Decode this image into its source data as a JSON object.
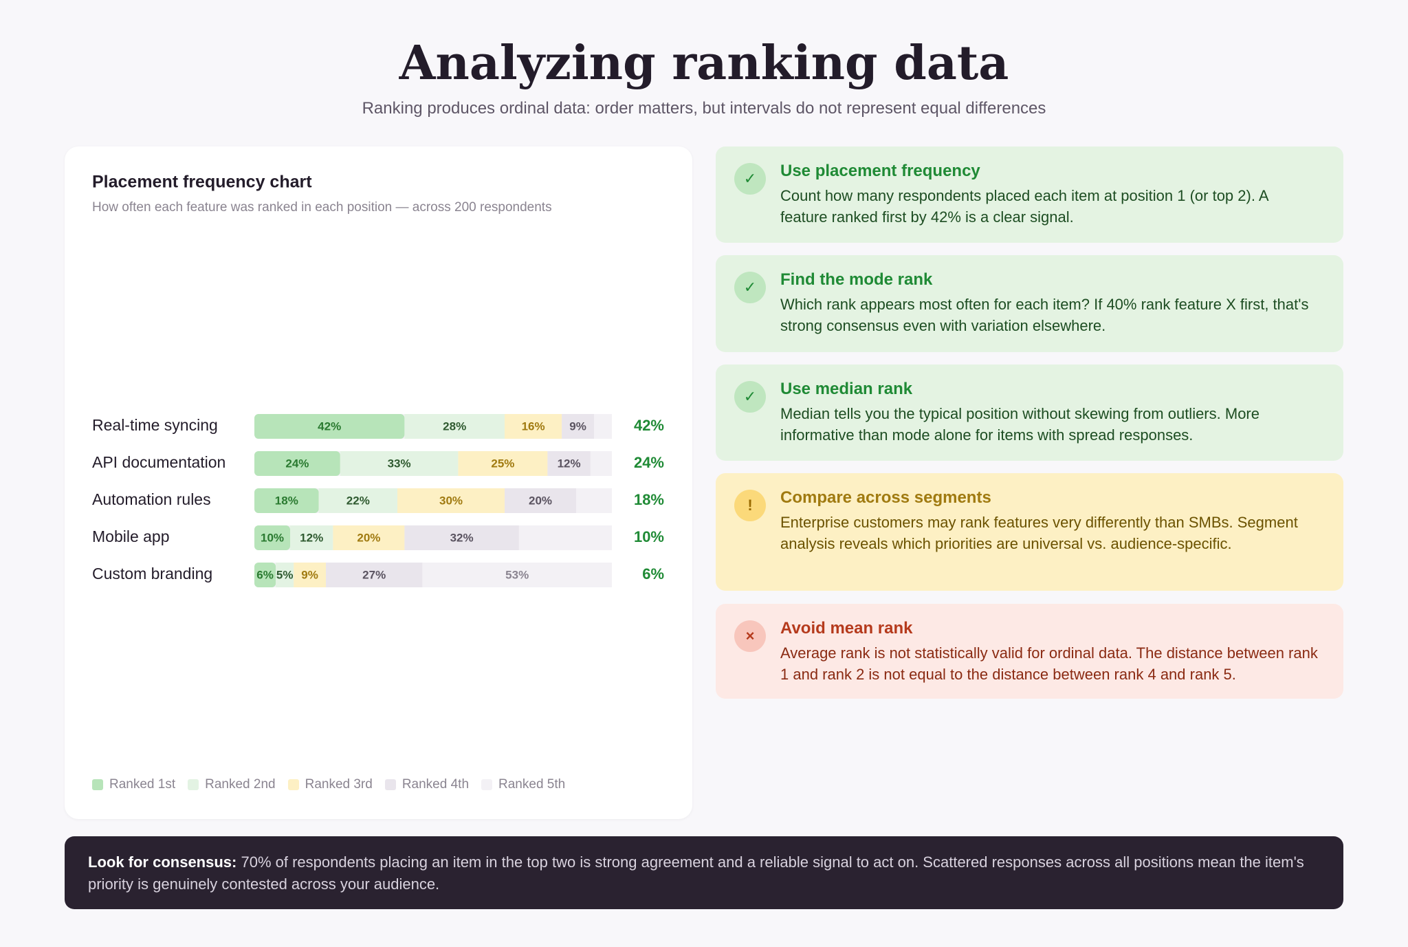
{
  "header": {
    "title": "Analyzing ranking data",
    "subtitle": "Ranking produces ordinal data: order matters, but intervals do not represent equal differences"
  },
  "chart_data": {
    "type": "bar",
    "orientation": "horizontal",
    "stacked": true,
    "title": "Placement frequency chart",
    "subtitle": "How often each feature was ranked in each position — across 200 respondents",
    "categories": [
      "Real-time syncing",
      "API documentation",
      "Automation rules",
      "Mobile app",
      "Custom branding"
    ],
    "xlim": [
      0,
      100
    ],
    "series": [
      {
        "name": "Ranked 1st",
        "color": "#b7e4b9",
        "values": [
          42,
          24,
          18,
          10,
          6
        ],
        "value_labels": [
          "42%",
          "24%",
          "18%",
          "10%",
          "6%"
        ]
      },
      {
        "name": "Ranked 2nd",
        "color": "#e3f3e3",
        "values": [
          28,
          33,
          22,
          12,
          5
        ],
        "value_labels": [
          "28%",
          "33%",
          "22%",
          "12%",
          "5%"
        ]
      },
      {
        "name": "Ranked 3rd",
        "color": "#fdf0c4",
        "values": [
          16,
          25,
          30,
          20,
          9
        ],
        "value_labels": [
          "16%",
          "25%",
          "30%",
          "20%",
          "9%"
        ]
      },
      {
        "name": "Ranked 4th",
        "color": "#e9e5ec",
        "values": [
          9,
          12,
          20,
          32,
          27
        ],
        "value_labels": [
          "9%",
          "12%",
          "20%",
          "32%",
          "27%"
        ]
      },
      {
        "name": "Ranked 5th",
        "color": "#f3f1f5",
        "values": [
          5,
          6,
          10,
          26,
          53
        ],
        "value_labels": [
          null,
          null,
          null,
          null,
          "53%"
        ]
      }
    ]
  },
  "cards": [
    {
      "title": "Use placement frequency",
      "text": "Count how many respondents placed each item at position 1 (or top 2). A feature ranked first by 42% is a clear signal."
    },
    {
      "title": "Find the mode rank",
      "text": "Which rank appears most often for each item? If 40% rank feature X first, that's strong consensus even with variation elsewhere."
    },
    {
      "title": "Use median rank",
      "text": "Median tells you the typical position without skewing from outliers. More informative than mode alone for items with spread responses."
    },
    {
      "title": "Compare across segments",
      "text": "Enterprise customers may rank features very differently than SMBs. Segment analysis reveals which priorities are universal vs. audience-specific."
    },
    {
      "title": "Avoid mean rank",
      "text": "Average rank is not statistically valid for ordinal data. The distance between rank 1 and rank 2 is not equal to the distance between rank 4 and rank 5."
    }
  ],
  "footer": {
    "lead": "Look for consensus:",
    "text": "70% of respondents placing an item in the top two is strong agreement and a reliable signal to act on. Scattered responses across all positions mean the item's priority is genuinely contested across your audience."
  }
}
